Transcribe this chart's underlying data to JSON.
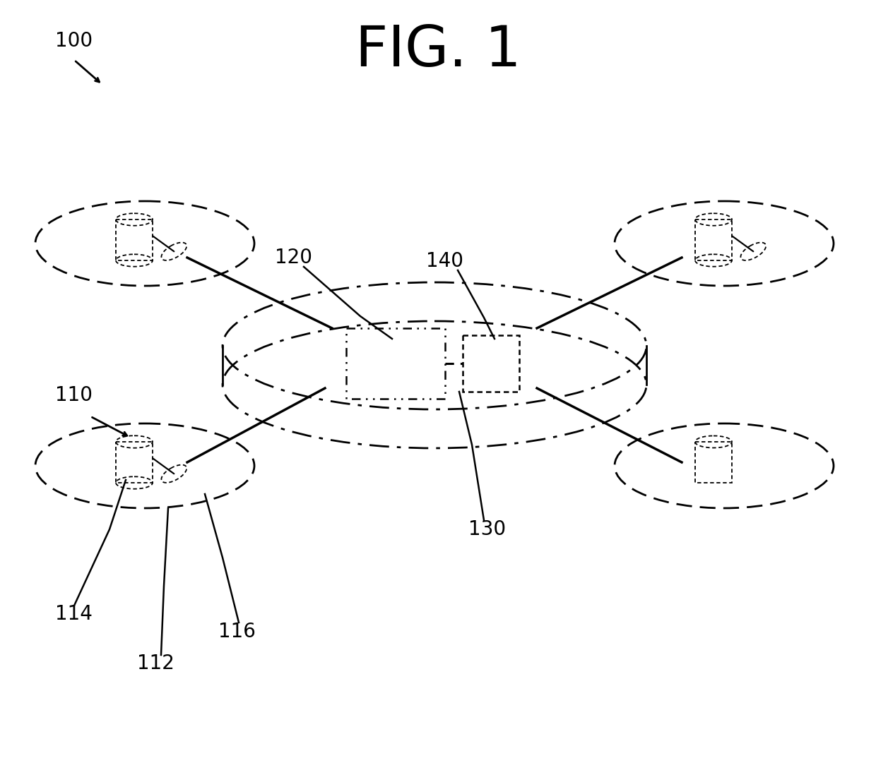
{
  "title": "FIG. 1",
  "title_fontsize": 58,
  "bg_color": "#ffffff",
  "line_color": "#000000",
  "label_fontsize": 20
}
